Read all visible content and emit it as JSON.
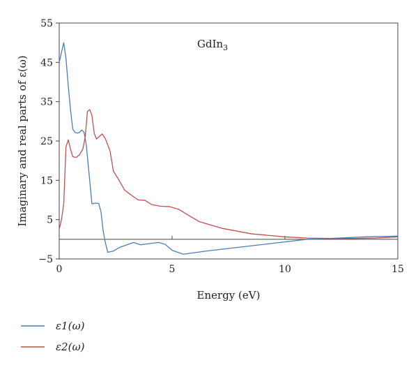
{
  "chart_data": {
    "type": "line",
    "title": "",
    "annotation": "GdIn",
    "annotation_sub": "3",
    "xlabel": "Energy (eV)",
    "ylabel": "Imaginary and real parts of ε(ω)",
    "xlim": [
      0,
      15
    ],
    "ylim": [
      -5,
      55
    ],
    "xticks": [
      0,
      5,
      10,
      15
    ],
    "yticks": [
      -5,
      5,
      15,
      25,
      35,
      45,
      55
    ],
    "grid": false,
    "legend_position": "bottom-left",
    "series": [
      {
        "name": "ε1(ω)",
        "color": "#4a7fb5",
        "points": [
          [
            0,
            45
          ],
          [
            0.1,
            47.5
          ],
          [
            0.2,
            50
          ],
          [
            0.3,
            46
          ],
          [
            0.4,
            39
          ],
          [
            0.5,
            33
          ],
          [
            0.6,
            28
          ],
          [
            0.7,
            27.2
          ],
          [
            0.8,
            27
          ],
          [
            0.9,
            27.2
          ],
          [
            1.0,
            27.8
          ],
          [
            1.1,
            27.2
          ],
          [
            1.2,
            24
          ],
          [
            1.3,
            18
          ],
          [
            1.4,
            12
          ],
          [
            1.45,
            9
          ],
          [
            1.6,
            9.2
          ],
          [
            1.75,
            9.1
          ],
          [
            1.85,
            7
          ],
          [
            1.95,
            2
          ],
          [
            2.05,
            -1
          ],
          [
            2.15,
            -3.3
          ],
          [
            2.4,
            -3
          ],
          [
            2.7,
            -2
          ],
          [
            3.0,
            -1.4
          ],
          [
            3.3,
            -0.8
          ],
          [
            3.6,
            -1.4
          ],
          [
            4.0,
            -1.1
          ],
          [
            4.4,
            -0.8
          ],
          [
            4.7,
            -1.3
          ],
          [
            5.0,
            -2.8
          ],
          [
            5.5,
            -3.8
          ],
          [
            6.5,
            -3
          ],
          [
            8,
            -2
          ],
          [
            9.5,
            -1
          ],
          [
            11,
            0
          ],
          [
            12,
            0.2
          ],
          [
            13.5,
            0.6
          ],
          [
            15,
            0.8
          ]
        ]
      },
      {
        "name": "ε2(ω)",
        "color": "#c0504d",
        "points": [
          [
            0,
            2.5
          ],
          [
            0.1,
            5
          ],
          [
            0.2,
            9
          ],
          [
            0.3,
            23.5
          ],
          [
            0.4,
            25.3
          ],
          [
            0.5,
            23
          ],
          [
            0.6,
            21
          ],
          [
            0.75,
            20.8
          ],
          [
            0.9,
            21.5
          ],
          [
            1.05,
            23
          ],
          [
            1.15,
            26
          ],
          [
            1.25,
            32.5
          ],
          [
            1.35,
            33
          ],
          [
            1.45,
            31.5
          ],
          [
            1.55,
            27
          ],
          [
            1.65,
            25.5
          ],
          [
            1.75,
            26
          ],
          [
            1.9,
            26.8
          ],
          [
            2.05,
            25.5
          ],
          [
            2.25,
            22.5
          ],
          [
            2.4,
            17.3
          ],
          [
            2.6,
            15.5
          ],
          [
            2.9,
            12.5
          ],
          [
            3.2,
            11.2
          ],
          [
            3.5,
            10
          ],
          [
            3.8,
            9.9
          ],
          [
            4.1,
            8.8
          ],
          [
            4.5,
            8.4
          ],
          [
            4.9,
            8.3
          ],
          [
            5.3,
            7.6
          ],
          [
            5.7,
            6.2
          ],
          [
            6.2,
            4.5
          ],
          [
            7.2,
            2.8
          ],
          [
            8.5,
            1.4
          ],
          [
            10,
            0.6
          ],
          [
            11,
            0.3
          ],
          [
            12,
            0.2
          ],
          [
            13,
            0.2
          ],
          [
            14,
            0.3
          ],
          [
            15,
            0.6
          ]
        ]
      }
    ]
  }
}
